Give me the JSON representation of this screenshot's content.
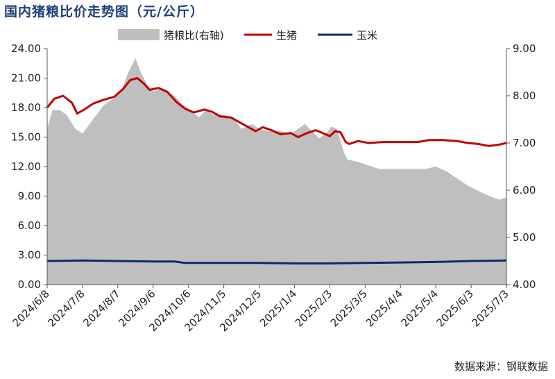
{
  "chart_data": {
    "type": "line",
    "title": "国内猪粮比价走势图（元/公斤）",
    "source": "数据来源：钢联数据",
    "x_categories": [
      "2024/6/8",
      "2024/7/8",
      "2024/8/7",
      "2024/9/6",
      "2024/10/6",
      "2024/11/5",
      "2024/12/5",
      "2025/1/4",
      "2025/2/3",
      "2025/3/5",
      "2025/4/4",
      "2025/5/4",
      "2025/6/3",
      "2025/7/3"
    ],
    "y_left": {
      "min": 0,
      "max": 24,
      "ticks": [
        "0.00",
        "3.00",
        "6.00",
        "9.00",
        "12.00",
        "15.00",
        "18.00",
        "21.00",
        "24.00"
      ]
    },
    "y_right": {
      "min": 4,
      "max": 9,
      "ticks": [
        "4.00",
        "5.00",
        "6.00",
        "7.00",
        "8.00",
        "9.00"
      ]
    },
    "legend": {
      "placement": "top",
      "items": [
        "猪粮比(右轴)",
        "生猪",
        "玉米"
      ]
    },
    "series": [
      {
        "name": "猪粮比(右轴)",
        "kind": "area",
        "axis": "right",
        "color": "#bfbfbf",
        "points": [
          [
            0,
            7.3
          ],
          [
            0.15,
            7.7
          ],
          [
            0.35,
            7.7
          ],
          [
            0.55,
            7.6
          ],
          [
            0.8,
            7.3
          ],
          [
            1.0,
            7.2
          ],
          [
            1.3,
            7.5
          ],
          [
            1.6,
            7.8
          ],
          [
            1.9,
            7.95
          ],
          [
            2.1,
            8.1
          ],
          [
            2.3,
            8.5
          ],
          [
            2.5,
            8.8
          ],
          [
            2.65,
            8.5
          ],
          [
            2.85,
            8.2
          ],
          [
            3.0,
            8.1
          ],
          [
            3.3,
            8.15
          ],
          [
            3.6,
            8.0
          ],
          [
            3.85,
            7.8
          ],
          [
            4.1,
            7.65
          ],
          [
            4.3,
            7.55
          ],
          [
            4.5,
            7.7
          ],
          [
            4.7,
            7.6
          ],
          [
            5.0,
            7.6
          ],
          [
            5.3,
            7.5
          ],
          [
            5.5,
            7.3
          ],
          [
            5.8,
            7.4
          ],
          [
            6.0,
            7.3
          ],
          [
            6.3,
            7.25
          ],
          [
            6.6,
            7.25
          ],
          [
            6.9,
            7.2
          ],
          [
            7.1,
            7.3
          ],
          [
            7.3,
            7.4
          ],
          [
            7.5,
            7.25
          ],
          [
            7.7,
            7.1
          ],
          [
            7.9,
            7.2
          ],
          [
            8.05,
            7.35
          ],
          [
            8.2,
            7.3
          ],
          [
            8.4,
            6.8
          ],
          [
            8.5,
            6.65
          ],
          [
            8.8,
            6.6
          ],
          [
            9.0,
            6.55
          ],
          [
            9.4,
            6.45
          ],
          [
            9.8,
            6.45
          ],
          [
            10.3,
            6.45
          ],
          [
            10.7,
            6.45
          ],
          [
            11.0,
            6.5
          ],
          [
            11.3,
            6.4
          ],
          [
            11.6,
            6.25
          ],
          [
            11.9,
            6.1
          ],
          [
            12.3,
            5.95
          ],
          [
            12.6,
            5.85
          ],
          [
            12.8,
            5.8
          ],
          [
            13.0,
            5.85
          ],
          [
            13.0,
            5.9
          ]
        ]
      },
      {
        "name": "生猪",
        "kind": "line",
        "axis": "left",
        "color": "#c00000",
        "points": [
          [
            0,
            18.0
          ],
          [
            0.2,
            18.9
          ],
          [
            0.45,
            19.2
          ],
          [
            0.7,
            18.5
          ],
          [
            0.85,
            17.4
          ],
          [
            1.05,
            17.8
          ],
          [
            1.3,
            18.4
          ],
          [
            1.6,
            18.8
          ],
          [
            1.9,
            19.1
          ],
          [
            2.15,
            19.9
          ],
          [
            2.35,
            20.8
          ],
          [
            2.55,
            21.0
          ],
          [
            2.75,
            20.4
          ],
          [
            2.9,
            19.8
          ],
          [
            3.15,
            20.0
          ],
          [
            3.4,
            19.6
          ],
          [
            3.65,
            18.6
          ],
          [
            3.9,
            17.9
          ],
          [
            4.15,
            17.5
          ],
          [
            4.45,
            17.8
          ],
          [
            4.65,
            17.6
          ],
          [
            4.9,
            17.1
          ],
          [
            5.2,
            17.0
          ],
          [
            5.45,
            16.5
          ],
          [
            5.7,
            16.0
          ],
          [
            5.9,
            15.6
          ],
          [
            6.1,
            16.0
          ],
          [
            6.35,
            15.7
          ],
          [
            6.6,
            15.3
          ],
          [
            6.9,
            15.4
          ],
          [
            7.1,
            15.0
          ],
          [
            7.35,
            15.4
          ],
          [
            7.6,
            15.7
          ],
          [
            7.8,
            15.4
          ],
          [
            8.0,
            15.1
          ],
          [
            8.15,
            15.6
          ],
          [
            8.3,
            15.5
          ],
          [
            8.45,
            14.5
          ],
          [
            8.55,
            14.3
          ],
          [
            8.8,
            14.6
          ],
          [
            9.1,
            14.4
          ],
          [
            9.5,
            14.5
          ],
          [
            10.0,
            14.5
          ],
          [
            10.5,
            14.5
          ],
          [
            10.8,
            14.7
          ],
          [
            11.2,
            14.7
          ],
          [
            11.6,
            14.6
          ],
          [
            11.9,
            14.4
          ],
          [
            12.2,
            14.3
          ],
          [
            12.5,
            14.1
          ],
          [
            12.75,
            14.2
          ],
          [
            13.0,
            14.4
          ]
        ]
      },
      {
        "name": "玉米",
        "kind": "line",
        "axis": "left",
        "color": "#0b2a66",
        "points": [
          [
            0,
            2.4
          ],
          [
            1.0,
            2.45
          ],
          [
            2.0,
            2.4
          ],
          [
            3.0,
            2.35
          ],
          [
            3.6,
            2.35
          ],
          [
            3.9,
            2.2
          ],
          [
            5.0,
            2.2
          ],
          [
            6.0,
            2.2
          ],
          [
            7.0,
            2.15
          ],
          [
            8.0,
            2.15
          ],
          [
            9.0,
            2.2
          ],
          [
            10.0,
            2.25
          ],
          [
            11.0,
            2.3
          ],
          [
            12.0,
            2.4
          ],
          [
            13.0,
            2.45
          ]
        ]
      }
    ]
  }
}
